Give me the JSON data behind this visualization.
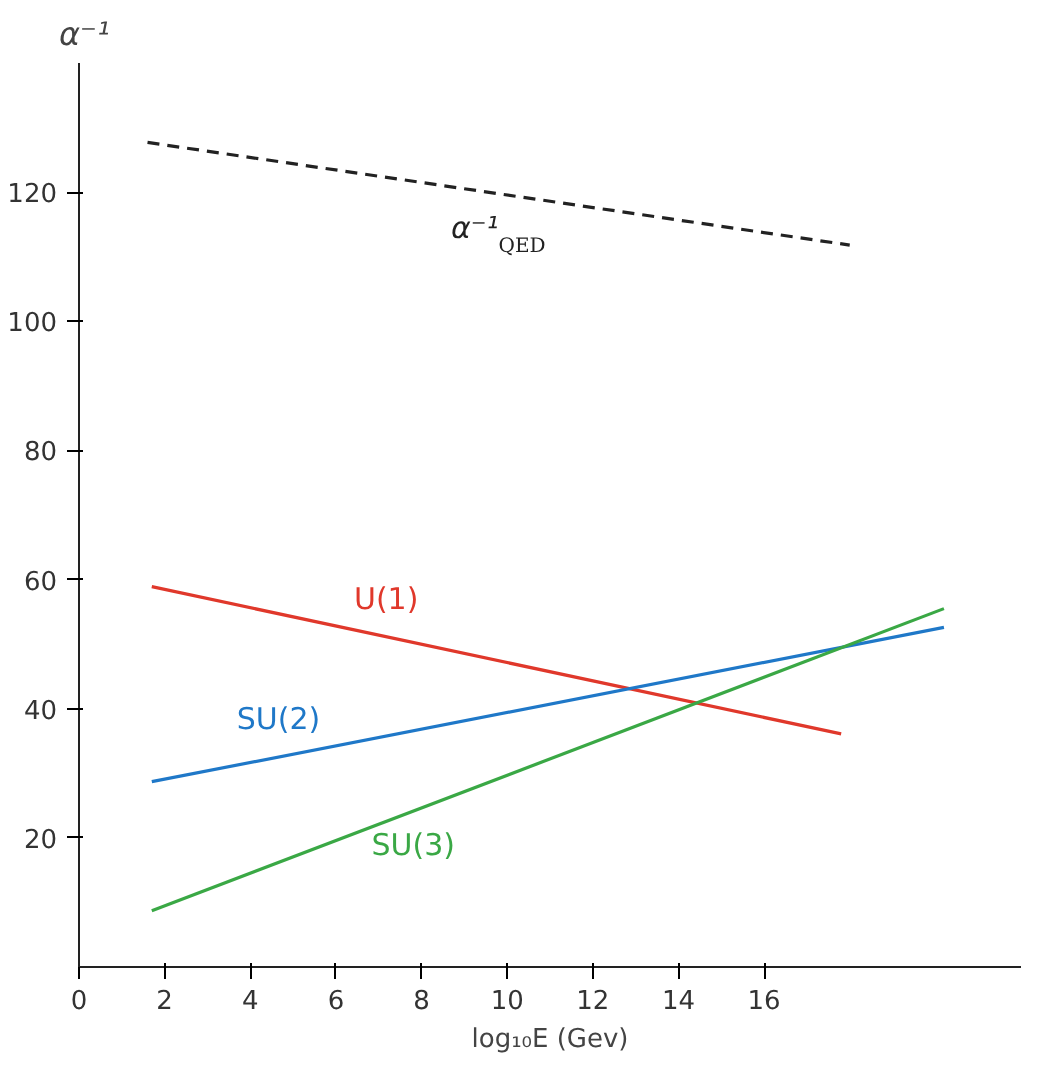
{
  "chart_data": {
    "type": "line",
    "xlabel": "log₁₀E (Gev)",
    "ylabel": "α⁻¹",
    "xlim": [
      0,
      22
    ],
    "ylim": [
      0,
      140
    ],
    "xticks": [
      0,
      2,
      4,
      6,
      8,
      10,
      12,
      14,
      16
    ],
    "yticks": [
      20,
      40,
      60,
      80,
      100,
      120
    ],
    "grid": false,
    "marker": "none",
    "series": [
      {
        "name": "α⁻¹$_{QED}$",
        "color": "#222222",
        "line_style": "dashed",
        "x": [
          1.6,
          18
        ],
        "values": [
          127.7,
          111.8
        ]
      },
      {
        "name": "U(1)",
        "color": "#e0382b",
        "line_style": "solid",
        "x": [
          1.7,
          17.8
        ],
        "values": [
          58.9,
          36.1
        ]
      },
      {
        "name": "SU(2)",
        "color": "#1f78c8",
        "line_style": "solid",
        "x": [
          1.7,
          20.2
        ],
        "values": [
          28.7,
          52.6
        ]
      },
      {
        "name": "SU(3)",
        "color": "#3aa845",
        "line_style": "solid",
        "x": [
          1.7,
          20.2
        ],
        "values": [
          8.7,
          55.5
        ]
      }
    ]
  }
}
